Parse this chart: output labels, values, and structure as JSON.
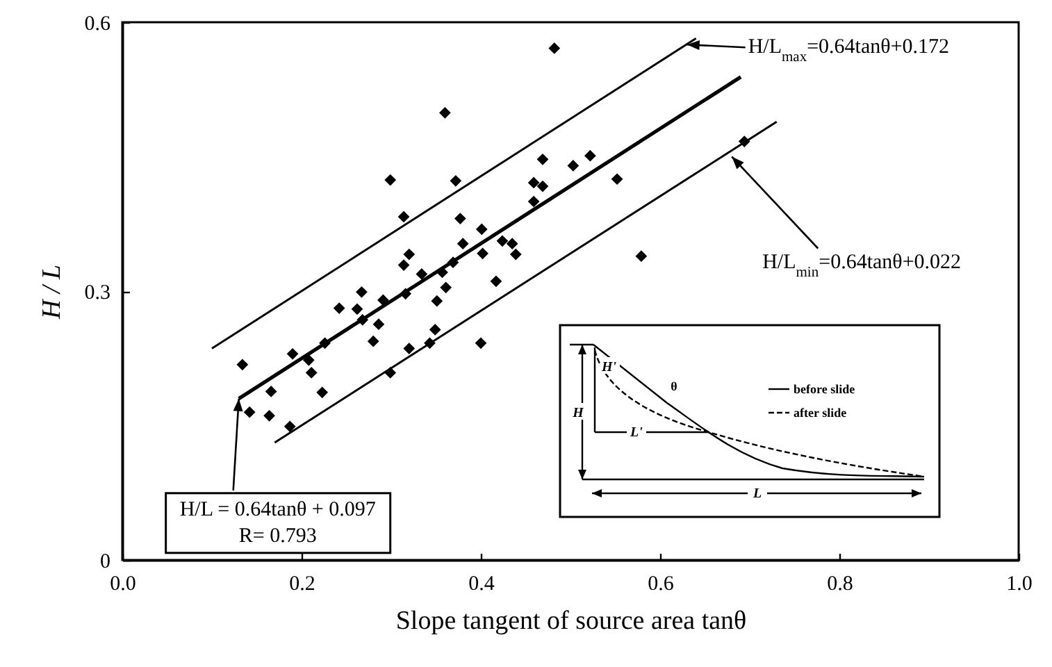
{
  "chart_data": {
    "type": "scatter",
    "xlabel": "Slope tangent of source area  tanθ",
    "ylabel": "H / L",
    "xlim": [
      0,
      1
    ],
    "xticks": [
      {
        "value": 0,
        "label": "0.0"
      },
      0.2,
      0.4,
      0.6,
      0.8,
      {
        "value": 1,
        "label": "1.0"
      }
    ],
    "ylim": [
      0,
      0.6
    ],
    "yticks": [
      0,
      0.3,
      0.6
    ],
    "series": [
      {
        "marker": "diamond",
        "color": "#000000",
        "x": [
          0.482,
          0.36,
          0.299,
          0.372,
          0.314,
          0.469,
          0.503,
          0.522,
          0.459,
          0.469,
          0.459,
          0.377,
          0.401,
          0.38,
          0.402,
          0.424,
          0.435,
          0.439,
          0.369,
          0.32,
          0.314,
          0.334,
          0.357,
          0.361,
          0.417,
          0.316,
          0.351,
          0.291,
          0.267,
          0.242,
          0.262,
          0.268,
          0.286,
          0.349,
          0.28,
          0.32,
          0.343,
          0.4,
          0.226,
          0.19,
          0.208,
          0.211,
          0.223,
          0.299,
          0.134,
          0.166,
          0.142,
          0.164,
          0.187,
          0.552,
          0.694,
          0.579
        ],
        "values": [
          0.571,
          0.499,
          0.424,
          0.423,
          0.383,
          0.447,
          0.44,
          0.451,
          0.421,
          0.417,
          0.4,
          0.381,
          0.369,
          0.353,
          0.342,
          0.356,
          0.353,
          0.341,
          0.332,
          0.341,
          0.329,
          0.319,
          0.321,
          0.304,
          0.311,
          0.297,
          0.289,
          0.29,
          0.299,
          0.281,
          0.28,
          0.268,
          0.263,
          0.257,
          0.244,
          0.236,
          0.242,
          0.242,
          0.242,
          0.23,
          0.223,
          0.209,
          0.187,
          0.209,
          0.218,
          0.188,
          0.165,
          0.161,
          0.149,
          0.425,
          0.467,
          0.339
        ]
      },
      {
        "type": "line",
        "color": "#000000",
        "x": [
          0.13,
          0.69
        ],
        "values": [
          0.18,
          0.539
        ]
      },
      {
        "type": "line",
        "color": "#000000",
        "x": [
          0.1,
          0.64
        ],
        "values": [
          0.236,
          0.582
        ]
      },
      {
        "type": "line",
        "color": "#000000",
        "x": [
          0.17,
          0.73
        ],
        "values": [
          0.131,
          0.489
        ]
      }
    ],
    "annotations": [
      {
        "text": "H/L$_{max}$=0.64tanθ+0.172",
        "x": 0.63,
        "y": 0.575
      },
      {
        "text": "H/L$_{min}$=0.64tanθ+0.022",
        "x": 0.68,
        "y": 0.45
      },
      {
        "text": "H/L = 0.64tanθ + 0.097\nR= 0.793",
        "x": 0.13,
        "y": 0.18
      },
      "before slide",
      "after slide",
      "θ",
      "H",
      "H'",
      "L",
      "L'"
    ]
  }
}
